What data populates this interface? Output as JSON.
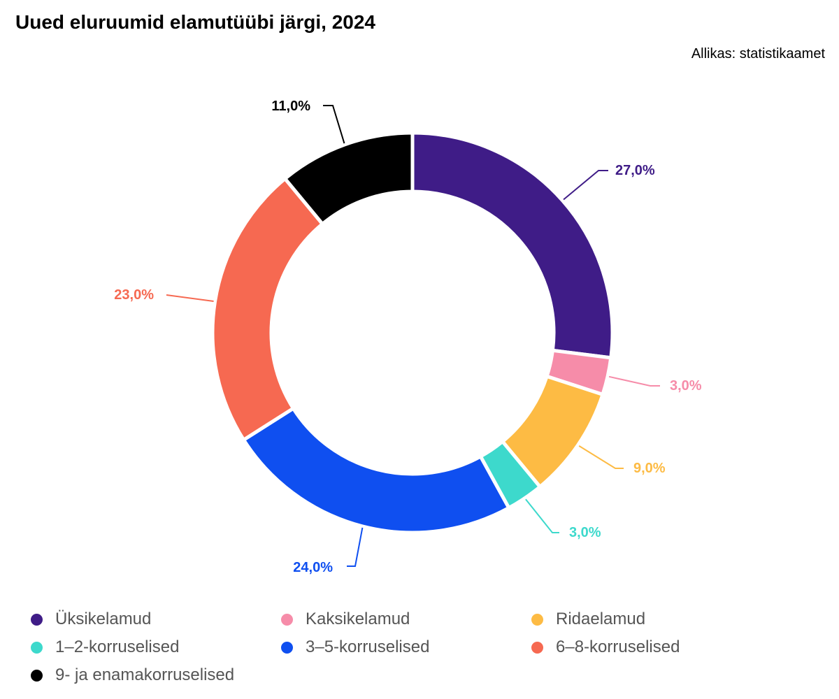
{
  "title": "Uued eluruumid elamutüübi järgi, 2024",
  "source": "Allikas: statistikaamet",
  "chart_data": {
    "type": "pie",
    "variant": "donut",
    "start_angle_deg": 0,
    "direction": "clockwise",
    "series": [
      {
        "name": "Üksikelamud",
        "value": 27.0,
        "label": "27,0%",
        "color": "#3f1c87"
      },
      {
        "name": "Kaksikelamud",
        "value": 3.0,
        "label": "3,0%",
        "color": "#f68ca9"
      },
      {
        "name": "Ridaelamud",
        "value": 9.0,
        "label": "9,0%",
        "color": "#fdbb44"
      },
      {
        "name": "1–2-korruselised",
        "value": 3.0,
        "label": "3,0%",
        "color": "#3dd9cc"
      },
      {
        "name": "3–5-korruselised",
        "value": 24.0,
        "label": "24,0%",
        "color": "#0f4ff0"
      },
      {
        "name": "6–8-korruselised",
        "value": 23.0,
        "label": "23,0%",
        "color": "#f66951"
      },
      {
        "name": "9- ja enamakorruselised",
        "value": 11.0,
        "label": "11,0%",
        "color": "#000000"
      }
    ],
    "legend": "bottom"
  }
}
